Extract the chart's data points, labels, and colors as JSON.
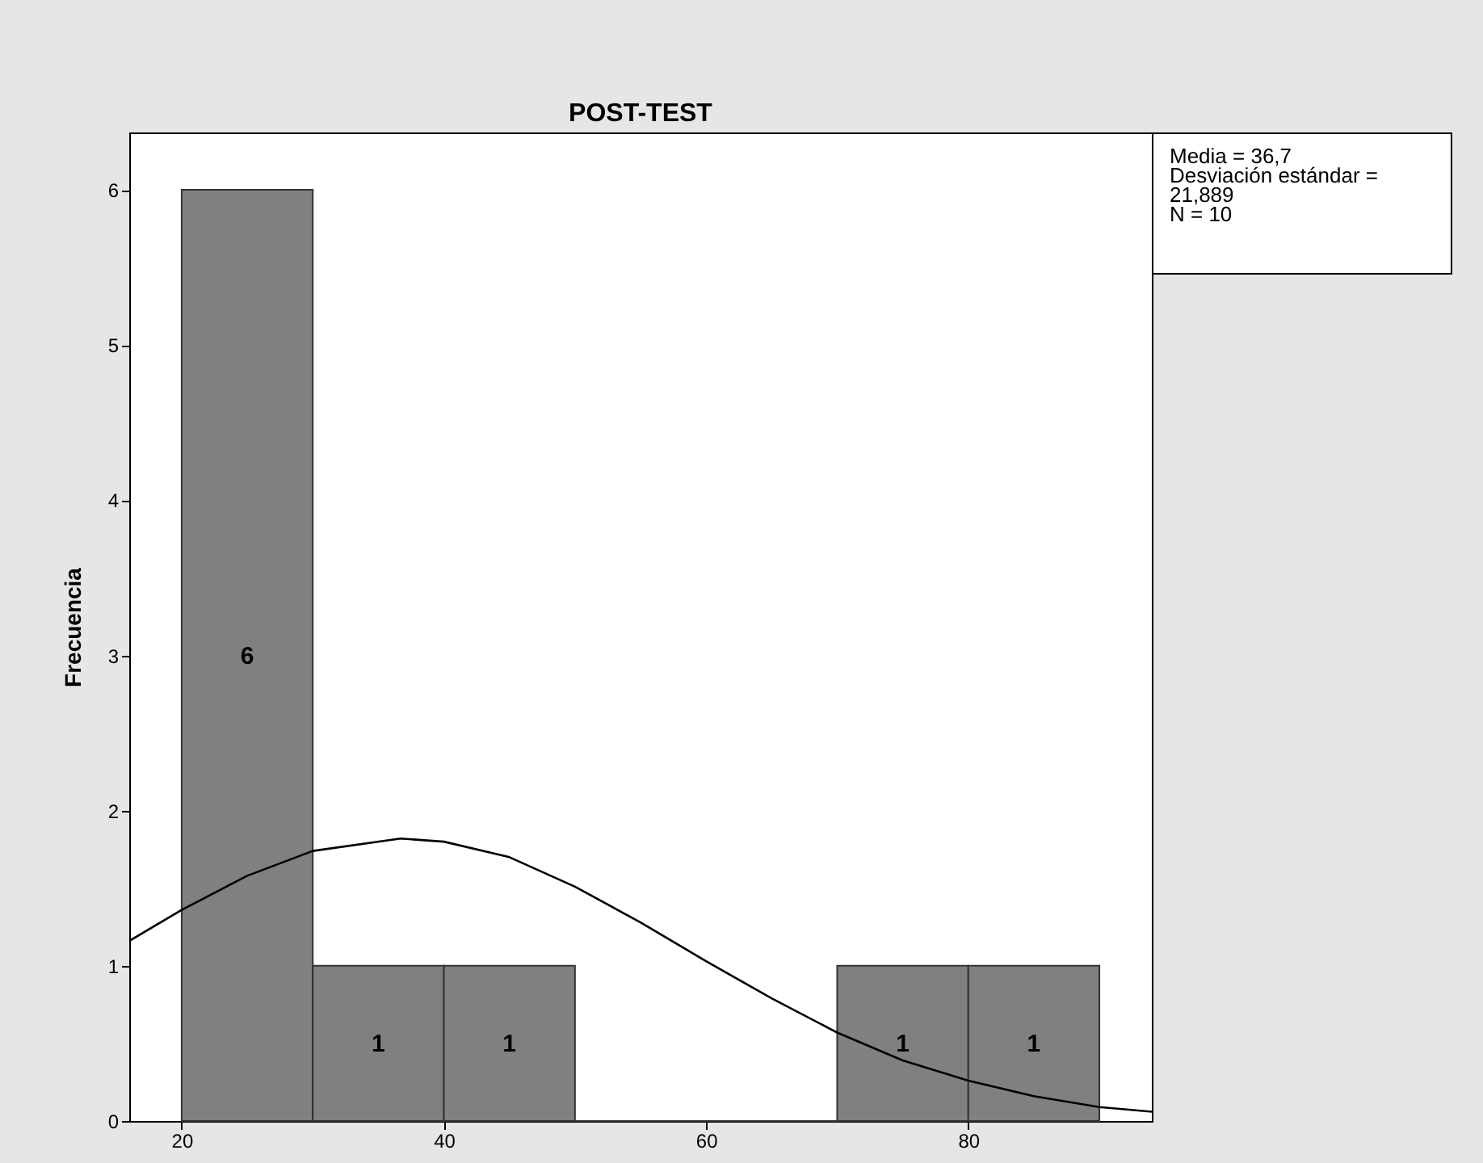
{
  "chart_data": {
    "type": "histogram",
    "title": "POST-TEST",
    "ylabel": "Frecuencia",
    "bins": [
      20,
      30,
      40,
      50,
      60,
      70,
      80,
      90
    ],
    "values": [
      6,
      1,
      1,
      0,
      0,
      1,
      1
    ],
    "value_labels": [
      "6",
      "1",
      "1",
      null,
      null,
      "1",
      "1"
    ],
    "color": "#808080",
    "series": [
      {
        "type": "line",
        "color": "#000000",
        "x": [
          16,
          20,
          25,
          30,
          36.7,
          40,
          45,
          50,
          55,
          60,
          65,
          70,
          75,
          80,
          85,
          90,
          94
        ],
        "values": [
          1.16,
          1.36,
          1.58,
          1.74,
          1.82,
          1.8,
          1.7,
          1.51,
          1.28,
          1.03,
          0.79,
          0.57,
          0.39,
          0.26,
          0.16,
          0.09,
          0.06
        ]
      }
    ],
    "xlim": [
      16,
      94
    ],
    "xticks": [
      20,
      40,
      60,
      80
    ],
    "ylim": [
      0,
      6.37
    ],
    "yticks": [
      0,
      1,
      2,
      3,
      4,
      5,
      6
    ],
    "grid": false,
    "annotations": [
      "Media = 36,7",
      "Desviación estándar = 21,889",
      "N = 10"
    ]
  }
}
